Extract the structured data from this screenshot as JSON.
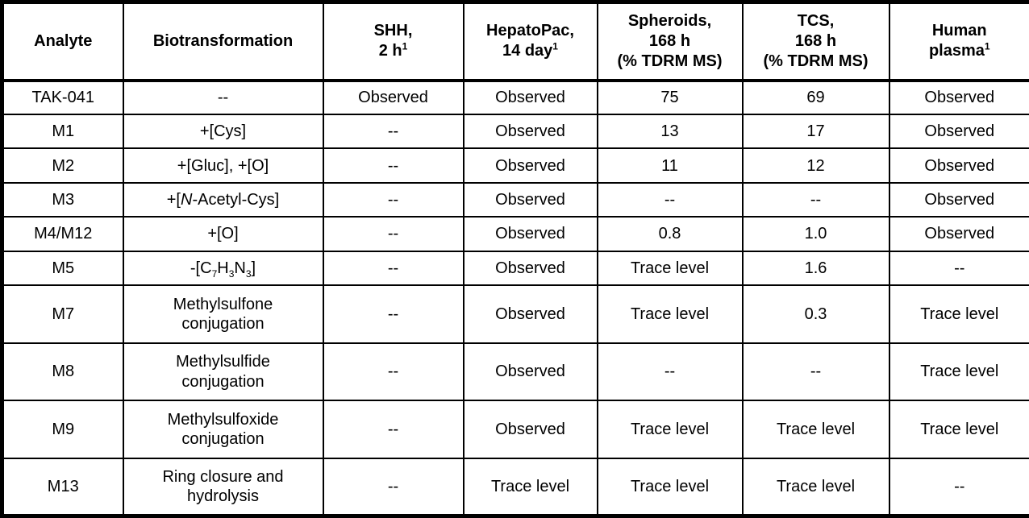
{
  "table": {
    "title": "TAK-041 metabolite biotransformation table",
    "colors": {
      "border": "#000000",
      "text": "#000000",
      "background": "#ffffff"
    },
    "headers": [
      "Analyte",
      "Biotransformation",
      [
        [
          "SHH,",
          ""
        ],
        [
          "",
          "br"
        ],
        [
          "2 h",
          ""
        ],
        [
          "1",
          "sup"
        ]
      ],
      [
        [
          "HepatoPac,",
          ""
        ],
        [
          "",
          "br"
        ],
        [
          "14 day",
          ""
        ],
        [
          "1",
          "sup"
        ]
      ],
      [
        [
          "Spheroids,",
          ""
        ],
        [
          "",
          "br"
        ],
        [
          "168 h",
          ""
        ],
        [
          "",
          "br"
        ],
        [
          "(% TDRM MS)",
          ""
        ]
      ],
      [
        [
          "TCS,",
          ""
        ],
        [
          "",
          "br"
        ],
        [
          "168 h",
          ""
        ],
        [
          "",
          "br"
        ],
        [
          "(% TDRM MS)",
          ""
        ]
      ],
      [
        [
          "Human",
          ""
        ],
        [
          "",
          "br"
        ],
        [
          "plasma",
          ""
        ],
        [
          "1",
          "sup"
        ]
      ]
    ],
    "rows": [
      {
        "cells": [
          "TAK-041",
          "--",
          "Observed",
          "Observed",
          "75",
          "69",
          "Observed"
        ]
      },
      {
        "cells": [
          "M1",
          "+[Cys]",
          "--",
          "Observed",
          "13",
          "17",
          "Observed"
        ]
      },
      {
        "cells": [
          "M2",
          "+[Gluc], +[O]",
          "--",
          "Observed",
          "11",
          "12",
          "Observed"
        ]
      },
      {
        "cells": [
          "M3",
          [
            [
              "+[",
              ""
            ],
            [
              "N",
              "i"
            ],
            [
              "-Acetyl-Cys]",
              ""
            ]
          ],
          "--",
          "Observed",
          "--",
          "--",
          "Observed"
        ]
      },
      {
        "cells": [
          "M4/M12",
          "+[O]",
          "--",
          "Observed",
          "0.8",
          "1.0",
          "Observed"
        ]
      },
      {
        "cells": [
          "M5",
          [
            [
              "-[C",
              ""
            ],
            [
              "7",
              "sub"
            ],
            [
              "H",
              ""
            ],
            [
              "3",
              "sub"
            ],
            [
              "N",
              ""
            ],
            [
              "3",
              "sub"
            ],
            [
              "]",
              ""
            ]
          ],
          "--",
          "Observed",
          "Trace level",
          "1.6",
          "--"
        ]
      },
      {
        "cells": [
          "M7",
          [
            [
              "Methylsulfone",
              ""
            ],
            [
              "",
              "br"
            ],
            [
              "conjugation",
              ""
            ]
          ],
          "--",
          "Observed",
          "Trace level",
          "0.3",
          "Trace level"
        ]
      },
      {
        "cells": [
          "M8",
          [
            [
              "Methylsulfide",
              ""
            ],
            [
              "",
              "br"
            ],
            [
              "conjugation",
              ""
            ]
          ],
          "--",
          "Observed",
          "--",
          "--",
          "Trace level"
        ]
      },
      {
        "cells": [
          "M9",
          [
            [
              "Methylsulfoxide",
              ""
            ],
            [
              "",
              "br"
            ],
            [
              "conjugation",
              ""
            ]
          ],
          "--",
          "Observed",
          "Trace level",
          "Trace level",
          "Trace level"
        ]
      },
      {
        "cells": [
          "M13",
          [
            [
              "Ring closure and",
              ""
            ],
            [
              "",
              "br"
            ],
            [
              "hydrolysis",
              ""
            ]
          ],
          "--",
          "Trace level",
          "Trace level",
          "Trace level",
          "--"
        ]
      }
    ]
  }
}
